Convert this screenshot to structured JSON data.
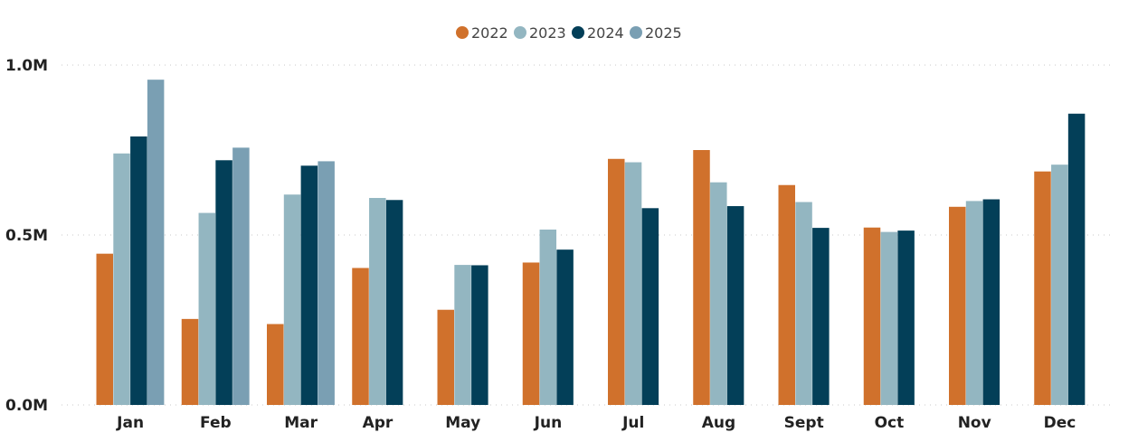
{
  "chart_data": {
    "type": "bar",
    "categories": [
      "Jan",
      "Feb",
      "Mar",
      "Apr",
      "May",
      "Jun",
      "Jul",
      "Aug",
      "Sept",
      "Oct",
      "Nov",
      "Dec"
    ],
    "series": [
      {
        "name": "2022",
        "color": "#D0712C",
        "values": [
          0.445,
          0.253,
          0.238,
          0.403,
          0.28,
          0.419,
          0.724,
          0.75,
          0.647,
          0.522,
          0.583,
          0.687
        ]
      },
      {
        "name": "2023",
        "color": "#93B6C1",
        "values": [
          0.74,
          0.565,
          0.619,
          0.609,
          0.412,
          0.516,
          0.714,
          0.655,
          0.597,
          0.509,
          0.6,
          0.707
        ]
      },
      {
        "name": "2024",
        "color": "#033F58",
        "values": [
          0.79,
          0.72,
          0.704,
          0.603,
          0.411,
          0.457,
          0.579,
          0.585,
          0.521,
          0.513,
          0.605,
          0.857
        ]
      },
      {
        "name": "2025",
        "color": "#7A9FB3",
        "values": [
          0.957,
          0.757,
          0.717,
          null,
          null,
          null,
          null,
          null,
          null,
          null,
          null,
          null
        ]
      }
    ],
    "ylim": [
      0,
      1.0
    ],
    "yticks": [
      {
        "value": 0.0,
        "label": "0.0M"
      },
      {
        "value": 0.5,
        "label": "0.5M"
      },
      {
        "value": 1.0,
        "label": "1.0M"
      }
    ],
    "grid": true,
    "legend_position": "top-center",
    "title": "",
    "xlabel": "",
    "ylabel": ""
  }
}
